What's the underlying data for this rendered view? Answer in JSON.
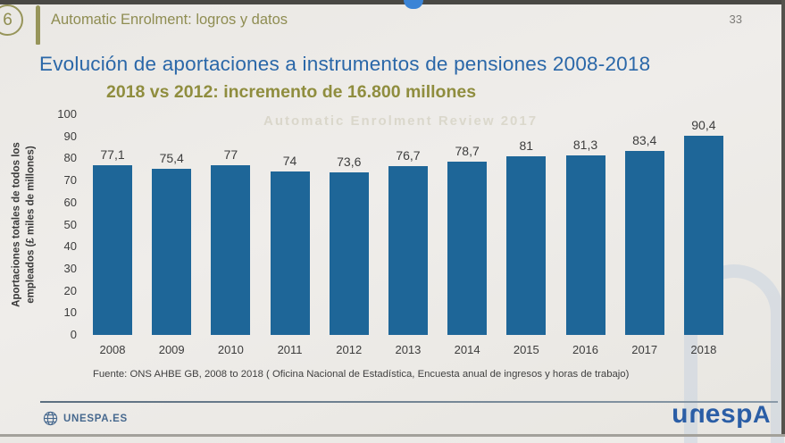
{
  "page": {
    "badge": "6",
    "header": "Automatic Enrolment: logros y datos",
    "page_number": "33"
  },
  "title": "Evolución de aportaciones a instrumentos de pensiones 2008-2018",
  "subtitle": "2018 vs 2012: incremento de 16.800 millones",
  "ghost_text": "Automatic Enrolment Review 2017",
  "chart_data": {
    "type": "bar",
    "title": "Evolución de aportaciones a instrumentos de pensiones 2008-2018",
    "categories": [
      "2008",
      "2009",
      "2010",
      "2011",
      "2012",
      "2013",
      "2014",
      "2015",
      "2016",
      "2017",
      "2018"
    ],
    "values": [
      77.1,
      75.4,
      77,
      74,
      73.6,
      76.7,
      78.7,
      81,
      81.3,
      83.4,
      90.4
    ],
    "value_labels": [
      "77,1",
      "75,4",
      "77",
      "74",
      "73,6",
      "76,7",
      "78,7",
      "81",
      "81,3",
      "83,4",
      "90,4"
    ],
    "xlabel": "",
    "ylabel": "Aportaciones totales de todos los empleados (£ miles de millones)",
    "ylabel_lines": [
      "Aportaciones totales de todos los",
      "empleados (£ miles de millones)"
    ],
    "ylim": [
      0,
      100
    ],
    "yticks": [
      0,
      10,
      20,
      30,
      40,
      50,
      60,
      70,
      80,
      90,
      100
    ],
    "grid": false,
    "legend": false,
    "bar_color": "#1e6698"
  },
  "source": "Fuente: ONS AHBE GB, 2008 to 2018 ( Oficina Nacional de Estadística, Encuesta anual de ingresos y horas de trabajo)",
  "footer": {
    "site": "UNESPA.ES",
    "logo": "unespa"
  },
  "colors": {
    "bar": "#1e6698",
    "title_blue": "#2a67a8",
    "olive": "#8f8d52",
    "footer_blue": "#46688e",
    "logo_blue": "#2b5ea6"
  }
}
